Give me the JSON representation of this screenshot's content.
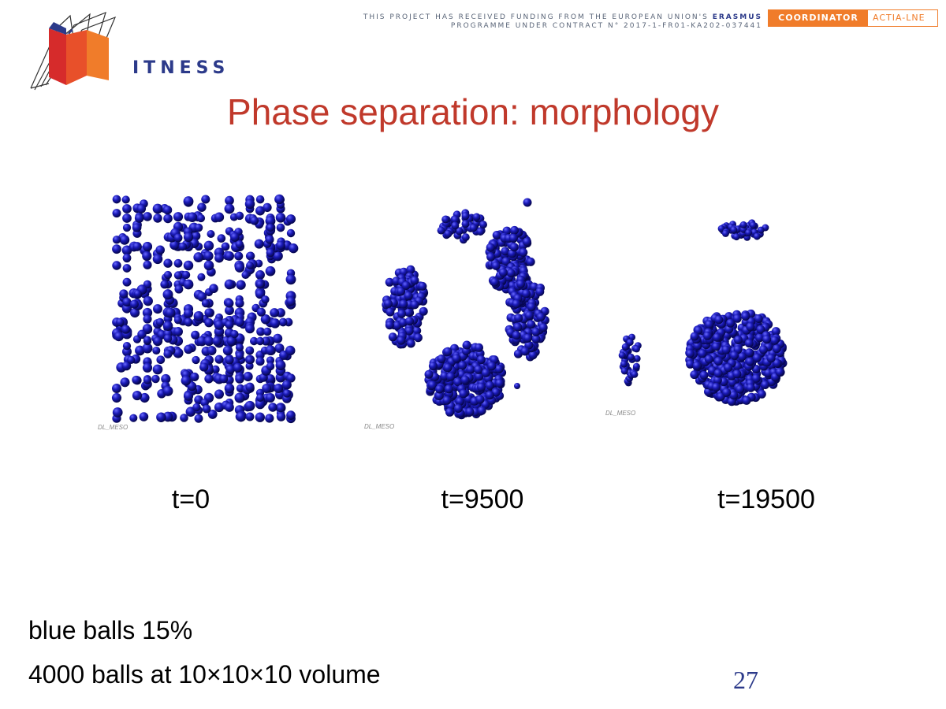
{
  "header": {
    "logo_text": "FITNESS",
    "logo_first_letter": "F",
    "logo_rest": "ITNESS",
    "funding_line1_prefix": "THIS PROJECT HAS RECEIVED FUNDING FROM THE EUROPEAN UNION'S",
    "funding_line1_bold": "ERASMUS",
    "funding_line2": "PROGRAMME UNDER CONTRACT N° 2017-1-FR01-KA202-037441",
    "coordinator_label": "COORDINATOR",
    "coordinator_name": "ACTIA-LNE"
  },
  "title": "Phase separation: morphology",
  "panels": [
    {
      "caption": "t=0",
      "tag": "DL_MESO"
    },
    {
      "caption": "t=9500",
      "tag": "DL_MESO"
    },
    {
      "caption": "t=19500",
      "tag": "DL_MESO"
    }
  ],
  "notes": {
    "line1": "blue balls 15%",
    "line2": "4000 balls at 10×10×10 volume"
  },
  "page_number": "27",
  "colors": {
    "title": "#c0392b",
    "ball": "#1a1ab8",
    "accent_orange": "#f07c2a",
    "brand_navy": "#2c3a8a"
  }
}
